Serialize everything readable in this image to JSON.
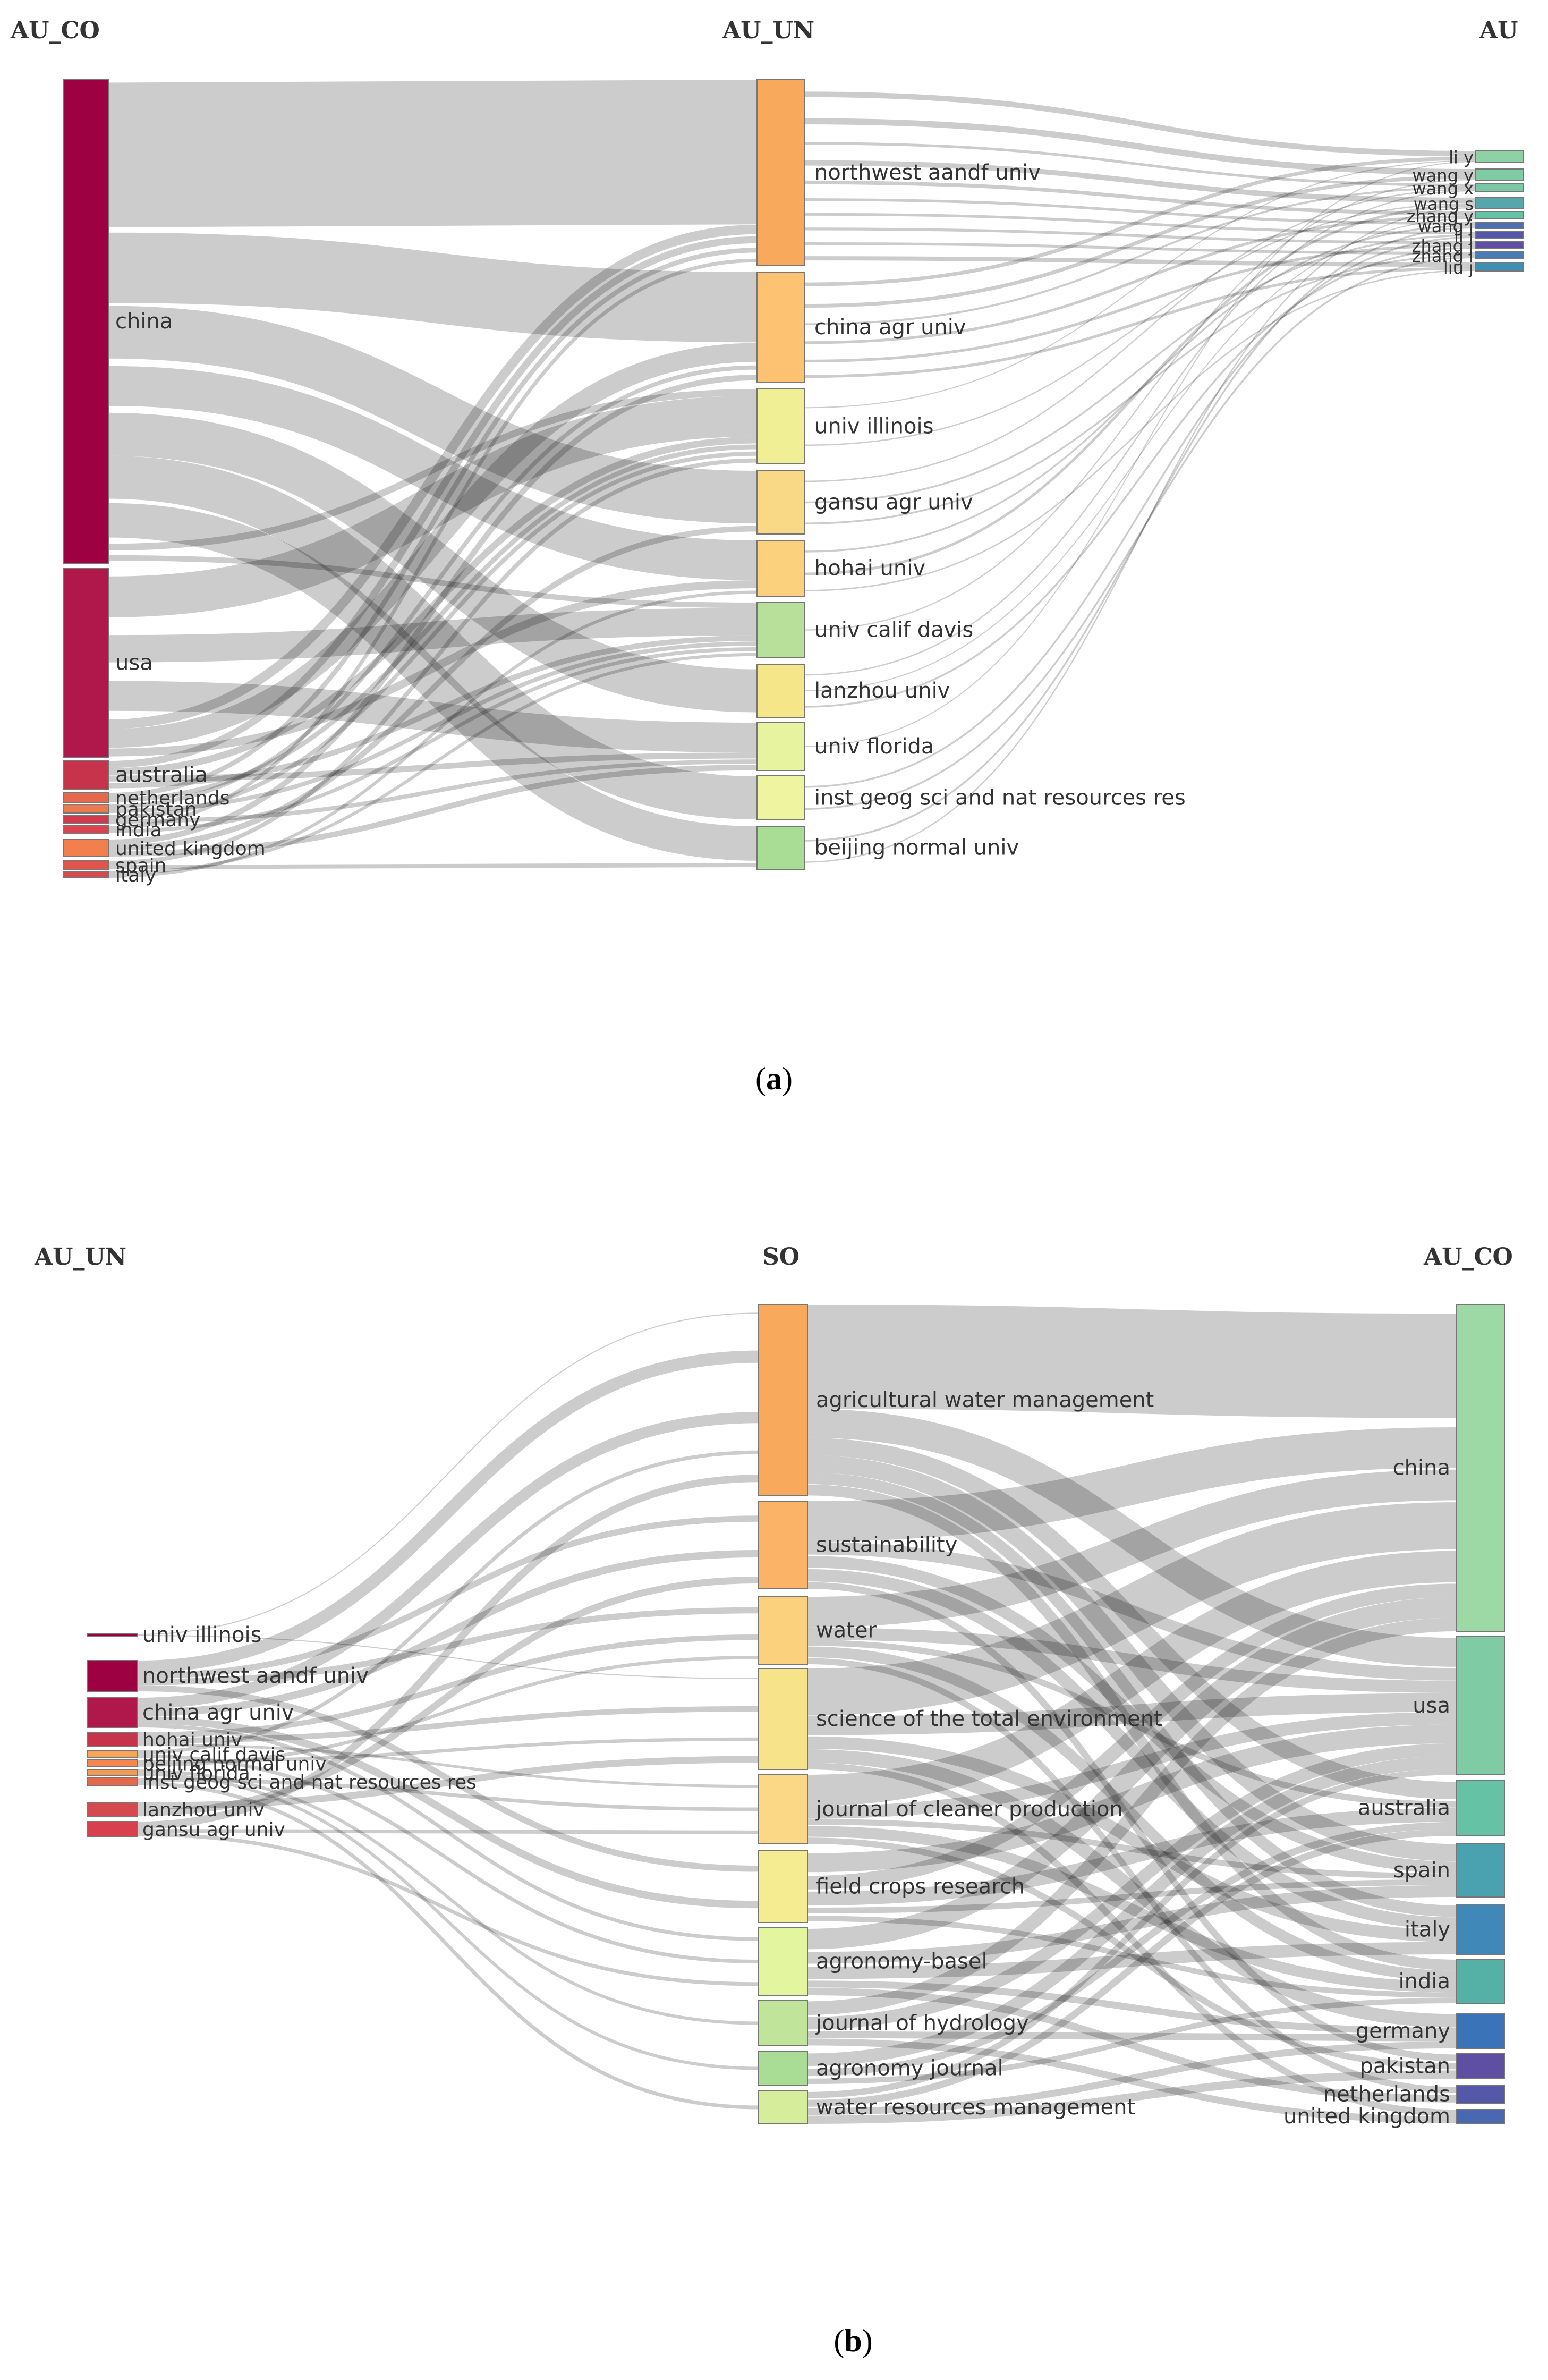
{
  "panel_a": {
    "headers": {
      "left": "AU_CO",
      "middle": "AU_UN",
      "right": "AU"
    },
    "caption_letter": "a",
    "countries": [
      "china",
      "usa",
      "australia",
      "netherlands",
      "pakistan",
      "germany",
      "india",
      "united kingdom",
      "spain",
      "italy"
    ],
    "universities": [
      "northwest aandf univ",
      "china agr univ",
      "univ illinois",
      "gansu agr univ",
      "hohai univ",
      "univ calif davis",
      "lanzhou univ",
      "univ florida",
      "inst geog sci and nat resources res",
      "beijing normal univ"
    ],
    "authors": [
      "li y",
      "wang y",
      "wang x",
      "wang s",
      "zhang y",
      "wang j",
      "li j",
      "zhang j",
      "zhang l",
      "liu j"
    ]
  },
  "panel_b": {
    "headers": {
      "left": "AU_UN",
      "middle": "SO",
      "right": "AU_CO"
    },
    "caption_letter": "b",
    "universities": [
      "univ illinois",
      "northwest aandf univ",
      "china agr univ",
      "hohai univ",
      "univ calif davis",
      "beijing normal univ",
      "univ florida",
      "inst geog sci and nat resources res",
      "lanzhou univ",
      "gansu agr univ"
    ],
    "sources": [
      "agricultural water management",
      "sustainability",
      "water",
      "science of the total environment",
      "journal of cleaner production",
      "field crops research",
      "agronomy-basel",
      "journal of hydrology",
      "agronomy journal",
      "water resources management"
    ],
    "countries": [
      "china",
      "usa",
      "australia",
      "spain",
      "italy",
      "india",
      "germany",
      "pakistan",
      "netherlands",
      "united kingdom"
    ]
  },
  "colors": {
    "link": "#000000",
    "a_countries": [
      "#9e0142",
      "#b0174a",
      "#c8334c",
      "#e4684c",
      "#ea7a4f",
      "#cf3b4d",
      "#d9454e",
      "#f47f4e",
      "#e0544c",
      "#d54a4e"
    ],
    "a_universities": [
      "#f9a95c",
      "#fdc372",
      "#f0ef95",
      "#fad986",
      "#fcd17e",
      "#b8e09a",
      "#f5e689",
      "#e8f3a0",
      "#eef4a0",
      "#a9dc95"
    ],
    "a_authors": [
      "#8fd1a4",
      "#7fcba4",
      "#79c7a6",
      "#57a6ac",
      "#66c2a5",
      "#4b6fb0",
      "#5558a8",
      "#5e4fa2",
      "#4a7db8",
      "#3e8fb2"
    ],
    "b_universities": [
      "#9e0142",
      "#9e0142",
      "#b0174a",
      "#c8334c",
      "#f8a55a",
      "#f3874f",
      "#f09a55",
      "#e4684c",
      "#d54a4e",
      "#d8404d"
    ],
    "b_sources": [
      "#f9a95c",
      "#fbb367",
      "#fcd17e",
      "#f7e38a",
      "#fbd885",
      "#f5eb91",
      "#e4f59f",
      "#bfe49a",
      "#a9dc95",
      "#d6ee9b"
    ],
    "b_countries": [
      "#9dd9a4",
      "#7fcca4",
      "#66c2a5",
      "#4aa1b0",
      "#3f88b8",
      "#55b0a6",
      "#3b73b8",
      "#5e4fa2",
      "#5558a8",
      "#4a68b2"
    ]
  }
}
